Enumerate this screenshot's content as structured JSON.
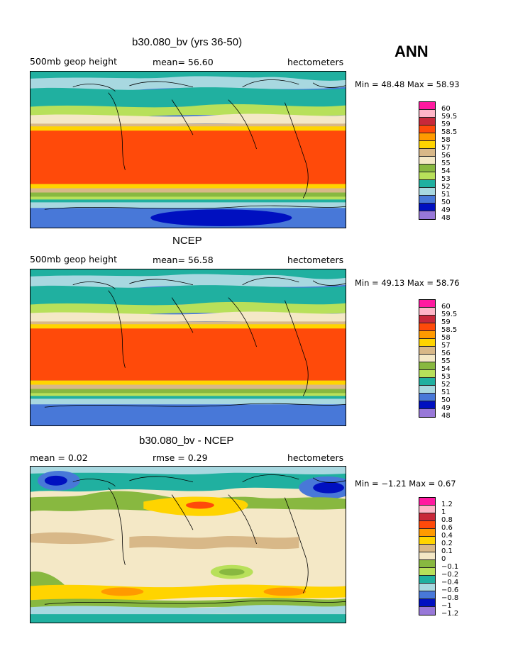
{
  "season": "ANN",
  "panels": [
    {
      "title": "b30.080_bv (yrs 36-50)",
      "left_label": "500mb  geop height",
      "mid_label": "mean=   56.60",
      "right_label": "hectometers",
      "minmax": "Min =   48.48  Max =   58.93",
      "color_labels": [
        "60",
        "59.5",
        "59",
        "58.5",
        "58",
        "57",
        "56",
        "55",
        "54",
        "53",
        "52",
        "51",
        "50",
        "49",
        "48"
      ]
    },
    {
      "title": "NCEP",
      "left_label": "500mb  geop height",
      "mid_label": "mean=   56.58",
      "right_label": "hectometers",
      "minmax": "Min =   49.13  Max =   58.76",
      "color_labels": [
        "60",
        "59.5",
        "59",
        "58.5",
        "58",
        "57",
        "56",
        "55",
        "54",
        "53",
        "52",
        "51",
        "50",
        "49",
        "48"
      ]
    },
    {
      "title": "b30.080_bv - NCEP",
      "left_label": "mean =     0.02",
      "mid_label": "rmse =     0.29",
      "right_label": "hectometers",
      "minmax": "Min =   −1.21  Max =     0.67",
      "color_labels": [
        "1.2",
        "1",
        "0.8",
        "0.6",
        "0.4",
        "0.2",
        "0.1",
        "0",
        "−0.1",
        "−0.2",
        "−0.4",
        "−0.6",
        "−0.8",
        "−1",
        "−1.2"
      ]
    }
  ],
  "palette": [
    "#ff1aa0",
    "#ffb6c8",
    "#c8283a",
    "#ff4a0a",
    "#ff9a00",
    "#ffd400",
    "#d8b888",
    "#f4e8c6",
    "#88b840",
    "#b8e05a",
    "#20b0a0",
    "#a8d8e0",
    "#4878d8",
    "#0010c0",
    "#9878d8"
  ]
}
